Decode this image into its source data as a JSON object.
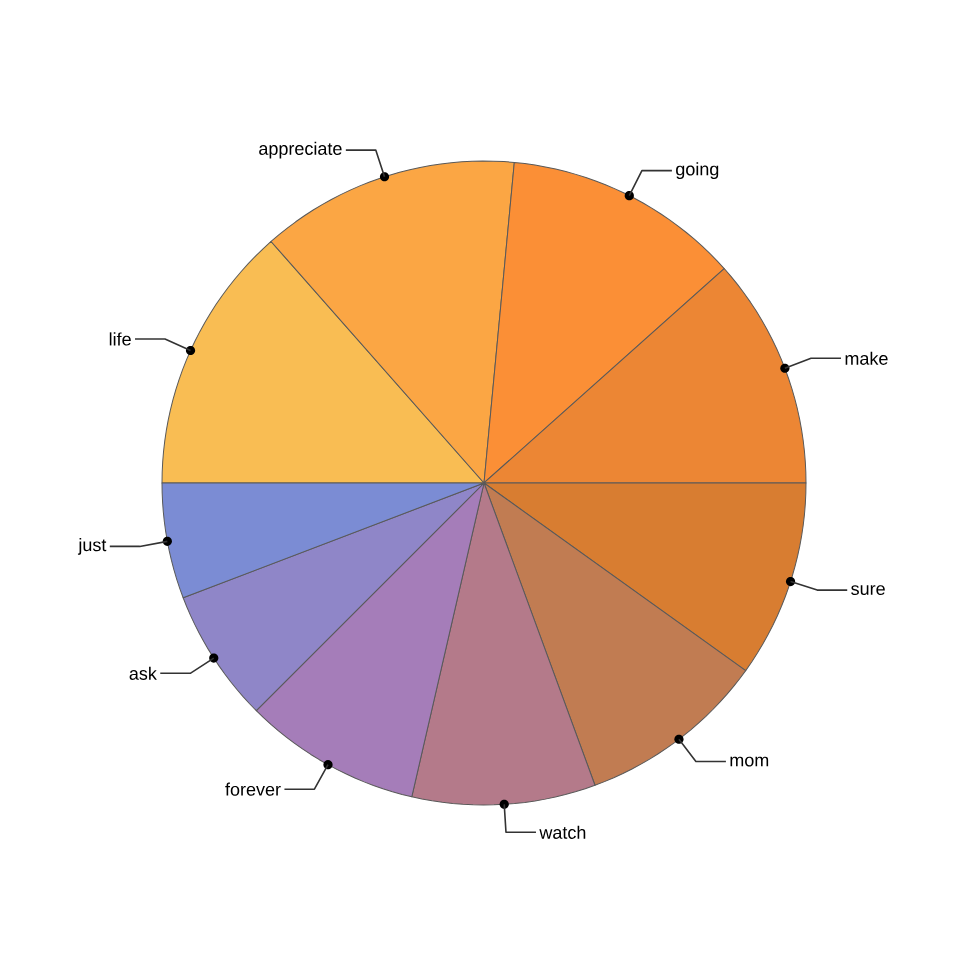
{
  "chart_data": {
    "type": "pie",
    "categories": [
      "life",
      "appreciate",
      "going",
      "make",
      "sure",
      "mom",
      "watch",
      "forever",
      "ask",
      "just"
    ],
    "values": [
      13.5,
      13.0,
      11.9,
      11.6,
      9.9,
      9.5,
      9.2,
      8.9,
      6.7,
      5.8
    ],
    "colors": [
      "#f9bd53",
      "#fba644",
      "#fb8f36",
      "#ec8634",
      "#d87d31",
      "#c17c52",
      "#b47a8a",
      "#a57db9",
      "#8f86c8",
      "#7b8cd4"
    ]
  }
}
